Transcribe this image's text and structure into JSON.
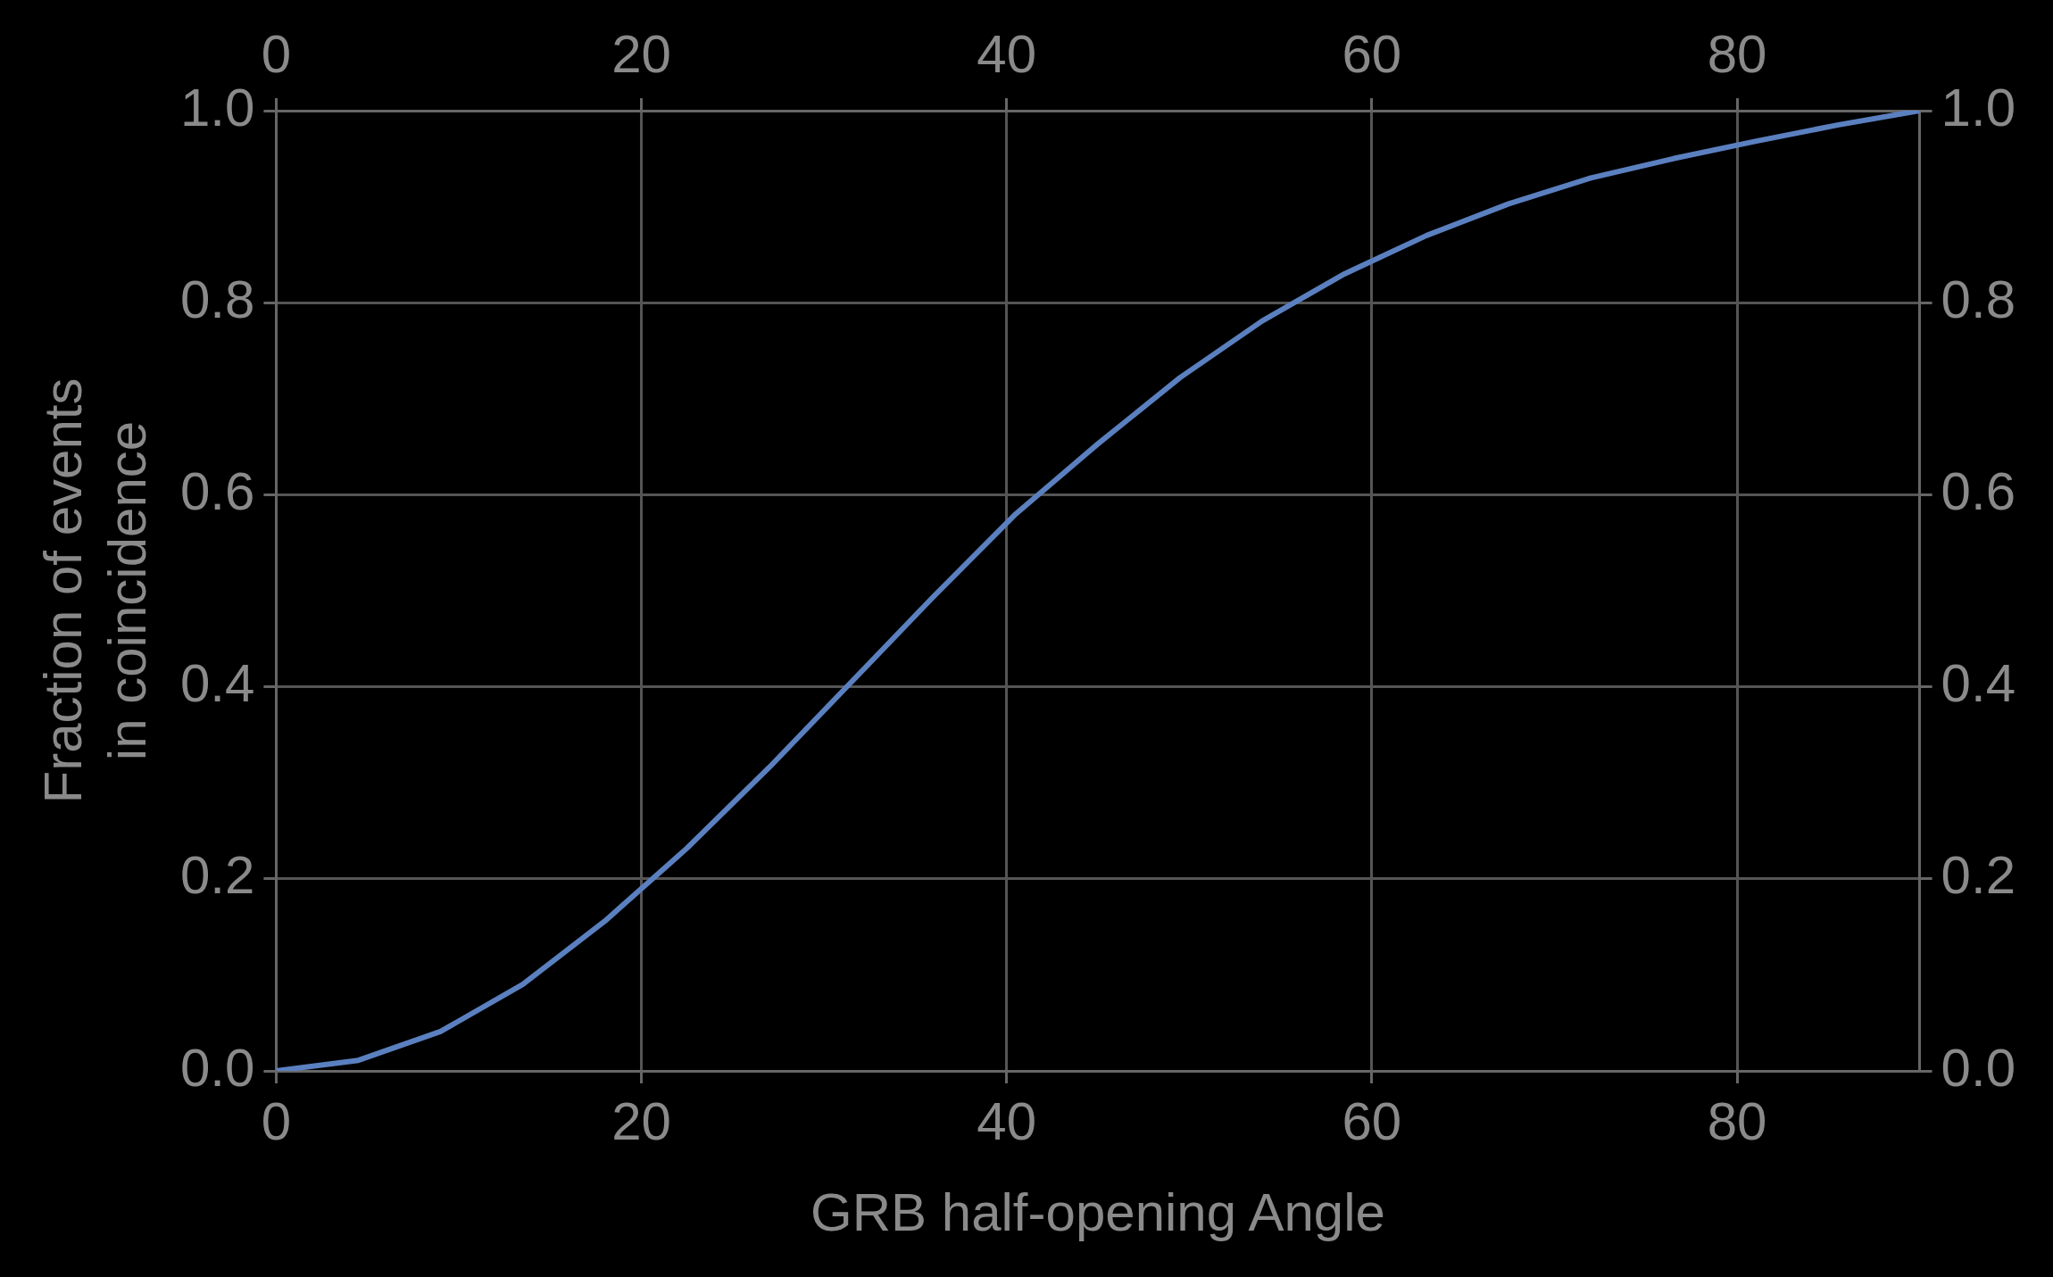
{
  "chart_data": {
    "type": "line",
    "xlabel": "GRB half-opening Angle",
    "ylabel": "Fraction of events\nin coincidence",
    "x": [
      0,
      4.5,
      9,
      13.5,
      18,
      22.5,
      27,
      31.5,
      36,
      40.5,
      45,
      49.5,
      54,
      58.5,
      63,
      67.5,
      72,
      76.5,
      81,
      85.5,
      90
    ],
    "series": [
      {
        "color": "#5b80c0",
        "values": [
          0,
          0.011,
          0.041,
          0.09,
          0.156,
          0.232,
          0.316,
          0.405,
          0.494,
          0.58,
          0.653,
          0.722,
          0.781,
          0.83,
          0.87,
          0.903,
          0.93,
          0.95,
          0.968,
          0.985,
          1.0
        ]
      }
    ],
    "xlim": [
      0,
      90
    ],
    "xticks": [
      0,
      20,
      40,
      60,
      80
    ],
    "x2lim": [
      0,
      90
    ],
    "x2ticks": [
      0,
      20,
      40,
      60,
      80
    ],
    "ylim": [
      0,
      1
    ],
    "yticks": [
      {
        "value": 0,
        "label": "0.0"
      },
      {
        "value": 0.2,
        "label": "0.2"
      },
      {
        "value": 0.4,
        "label": "0.4"
      },
      {
        "value": 0.6,
        "label": "0.6"
      },
      {
        "value": 0.8,
        "label": "0.8"
      },
      {
        "value": 1,
        "label": "1.0"
      }
    ],
    "y2lim": [
      0,
      1
    ],
    "y2ticks": [
      {
        "value": 0,
        "label": "0.0"
      },
      {
        "value": 0.2,
        "label": "0.2"
      },
      {
        "value": 0.4,
        "label": "0.4"
      },
      {
        "value": 0.6,
        "label": "0.6"
      },
      {
        "value": 0.8,
        "label": "0.8"
      },
      {
        "value": 1,
        "label": "1.0"
      }
    ],
    "grid": true,
    "legend": false
  }
}
